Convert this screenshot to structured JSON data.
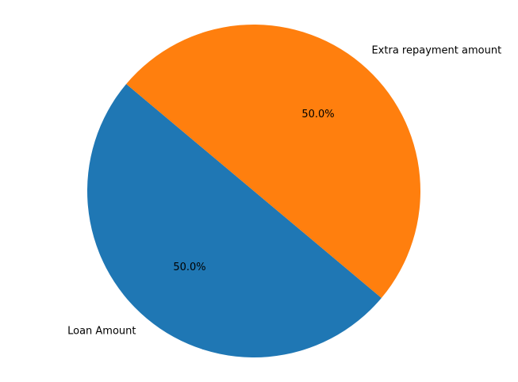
{
  "chart_data": {
    "type": "pie",
    "title": "",
    "startangle_deg": 140,
    "series": [
      {
        "name": "",
        "slices": [
          {
            "label": "Loan Amount",
            "value": 50,
            "pct_text": "50.0%",
            "color": "#1f77b4"
          },
          {
            "label": "Extra repayment amount",
            "value": 50,
            "pct_text": "50.0%",
            "color": "#ff7f0e"
          }
        ]
      }
    ],
    "legend": "none"
  }
}
